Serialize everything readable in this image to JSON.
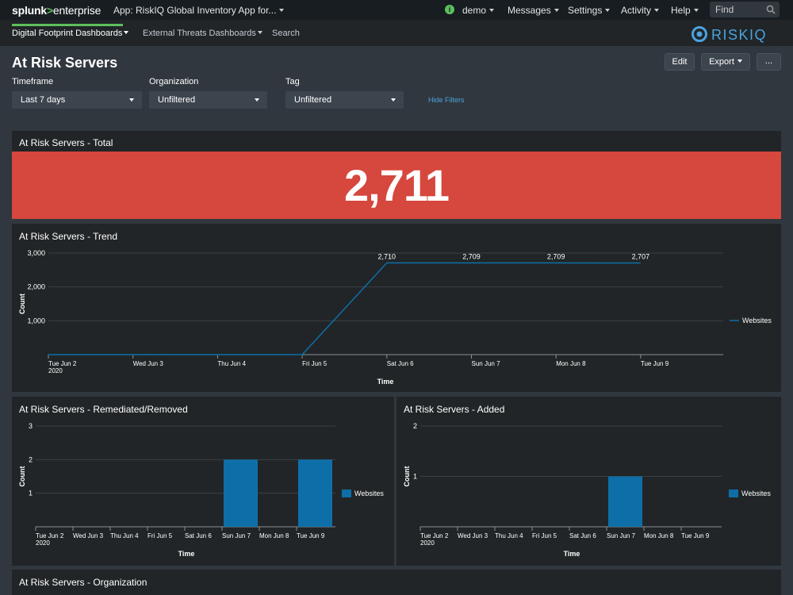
{
  "topbar": {
    "logo": {
      "part1": "splunk",
      "part2": ">",
      "part3": "enterprise"
    },
    "app_label": "App: RiskIQ Global Inventory App for...",
    "user_initial": "i",
    "user_label": "demo",
    "messages_label": "Messages",
    "settings_label": "Settings",
    "activity_label": "Activity",
    "help_label": "Help",
    "find_placeholder": "Find"
  },
  "appnav": {
    "items": [
      {
        "label": "Digital Footprint Dashboards"
      },
      {
        "label": "External Threats Dashboards"
      },
      {
        "label": "Search"
      }
    ],
    "brand": "RISKIQ"
  },
  "page": {
    "title": "At Risk Servers",
    "edit_label": "Edit",
    "export_label": "Export",
    "more_label": "...",
    "hide_filters": "Hide Filters"
  },
  "filters": [
    {
      "label": "Timeframe",
      "value": "Last 7 days"
    },
    {
      "label": "Organization",
      "value": "Unfiltered"
    },
    {
      "label": "Tag",
      "value": "Unfiltered"
    }
  ],
  "colors": {
    "single_value_bg": "#d6473d",
    "series": "#0e6fa8",
    "accent_green": "#5cc05c",
    "link_blue": "#4aa3df"
  },
  "panels": {
    "total": {
      "title": "At Risk Servers - Total",
      "value": "2,711"
    },
    "trend": {
      "title": "At Risk Servers - Trend"
    },
    "remediated": {
      "title": "At Risk Servers - Remediated/Removed"
    },
    "added": {
      "title": "At Risk Servers - Added"
    },
    "organization": {
      "title": "At Risk Servers - Organization"
    }
  },
  "chart_data": [
    {
      "type": "line",
      "title": "At Risk Servers - Trend",
      "xlabel": "Time",
      "ylabel": "Count",
      "categories": [
        "Tue Jun 2\n2020",
        "Wed Jun 3",
        "Thu Jun 4",
        "Fri Jun 5",
        "Sat Jun 6",
        "Sun Jun 7",
        "Mon Jun 8",
        "Tue Jun 9"
      ],
      "series": [
        {
          "name": "Websites",
          "values": [
            0,
            0,
            0,
            0,
            2710,
            2709,
            2709,
            2707
          ]
        }
      ],
      "data_labels": [
        "",
        "",
        "",
        "",
        "2,710",
        "2,709",
        "2,709",
        "2,707"
      ],
      "yticks": [
        "1,000",
        "2,000",
        "3,000"
      ],
      "ylim": [
        0,
        3000
      ],
      "grid": true,
      "legend": "right"
    },
    {
      "type": "bar",
      "title": "At Risk Servers - Remediated/Removed",
      "xlabel": "Time",
      "ylabel": "Count",
      "categories": [
        "Tue Jun 2\n2020",
        "Wed Jun 3",
        "Thu Jun 4",
        "Fri Jun 5",
        "Sat Jun 6",
        "Sun Jun 7",
        "Mon Jun 8",
        "Tue Jun 9"
      ],
      "series": [
        {
          "name": "Websites",
          "values": [
            0,
            0,
            0,
            0,
            0,
            2,
            0,
            2
          ]
        }
      ],
      "yticks": [
        "1",
        "2",
        "3"
      ],
      "ylim": [
        0,
        3
      ],
      "grid": true,
      "legend": "right"
    },
    {
      "type": "bar",
      "title": "At Risk Servers - Added",
      "xlabel": "Time",
      "ylabel": "Count",
      "categories": [
        "Tue Jun 2\n2020",
        "Wed Jun 3",
        "Thu Jun 4",
        "Fri Jun 5",
        "Sat Jun 6",
        "Sun Jun 7",
        "Mon Jun 8",
        "Tue Jun 9"
      ],
      "series": [
        {
          "name": "Websites",
          "values": [
            0,
            0,
            0,
            0,
            0,
            1,
            0,
            0
          ]
        }
      ],
      "yticks": [
        "1",
        "2"
      ],
      "ylim": [
        0,
        2
      ],
      "grid": true,
      "legend": "right"
    }
  ]
}
